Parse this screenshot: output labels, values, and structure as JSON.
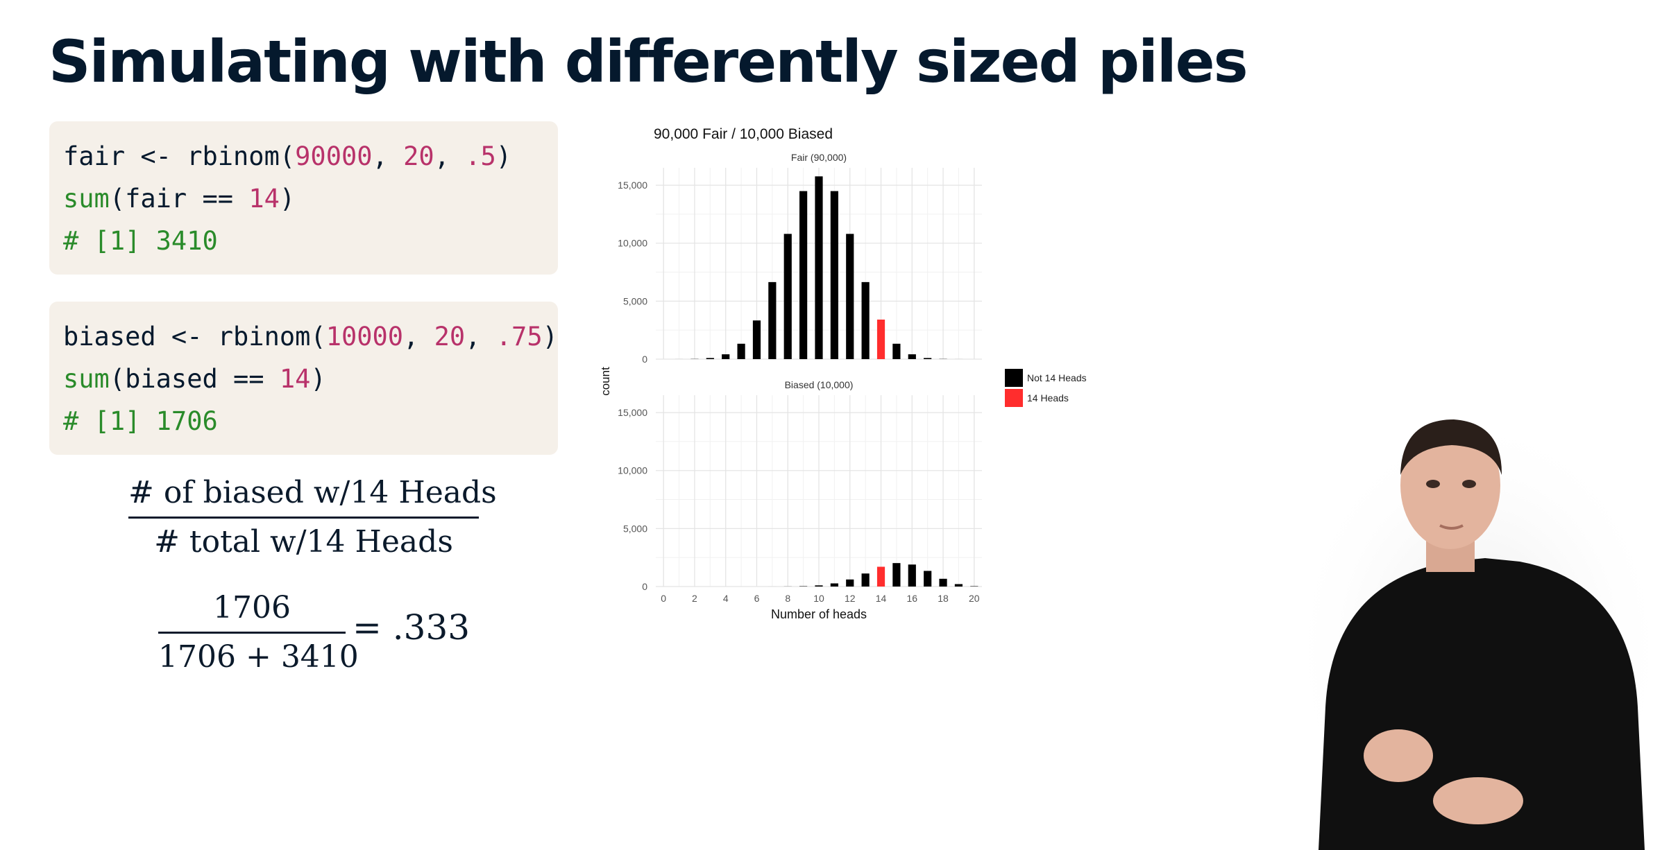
{
  "slide": {
    "title": "Simulating with differently sized piles"
  },
  "code_blocks": [
    {
      "lines": [
        [
          {
            "t": "fair <- rbinom(",
            "c": "plain"
          },
          {
            "t": "90000",
            "c": "num"
          },
          {
            "t": ", ",
            "c": "plain"
          },
          {
            "t": "20",
            "c": "num"
          },
          {
            "t": ", ",
            "c": "plain"
          },
          {
            "t": ".5",
            "c": "num"
          },
          {
            "t": ")",
            "c": "plain"
          }
        ],
        [
          {
            "t": "sum",
            "c": "fn"
          },
          {
            "t": "(fair == ",
            "c": "plain"
          },
          {
            "t": "14",
            "c": "num"
          },
          {
            "t": ")",
            "c": "plain"
          }
        ],
        [
          {
            "t": "# [1] 3410",
            "c": "cmt"
          }
        ]
      ]
    },
    {
      "lines": [
        [
          {
            "t": "biased <- rbinom(",
            "c": "plain"
          },
          {
            "t": "10000",
            "c": "num"
          },
          {
            "t": ", ",
            "c": "plain"
          },
          {
            "t": "20",
            "c": "num"
          },
          {
            "t": ", ",
            "c": "plain"
          },
          {
            "t": ".75",
            "c": "num"
          },
          {
            "t": ")",
            "c": "plain"
          }
        ],
        [
          {
            "t": "sum",
            "c": "fn"
          },
          {
            "t": "(biased == ",
            "c": "plain"
          },
          {
            "t": "14",
            "c": "num"
          },
          {
            "t": ")",
            "c": "plain"
          }
        ],
        [
          {
            "t": "# [1] 1706",
            "c": "cmt"
          }
        ]
      ]
    }
  ],
  "formula": {
    "ratio_numerator": "# of biased w/14 Heads",
    "ratio_denominator": "# total w/14 Heads",
    "calc_numerator": "1706",
    "calc_denominator": "1706 + 3410",
    "calc_result": "= .333"
  },
  "chart_data": {
    "type": "bar",
    "title": "90,000 Fair / 10,000 Biased",
    "xlabel": "Number of heads",
    "ylabel": "count",
    "x": [
      0,
      1,
      2,
      3,
      4,
      5,
      6,
      7,
      8,
      9,
      10,
      11,
      12,
      13,
      14,
      15,
      16,
      17,
      18,
      19,
      20
    ],
    "x_ticks": [
      0,
      2,
      4,
      6,
      8,
      10,
      12,
      14,
      16,
      18,
      20
    ],
    "y_ticks": [
      0,
      5000,
      10000,
      15000
    ],
    "y_tick_labels": [
      "0",
      "5,000",
      "10,000",
      "15,000"
    ],
    "ylim": [
      0,
      16500
    ],
    "highlight_x": 14,
    "panels": [
      {
        "name": "Fair (90,000)",
        "values": [
          0,
          2,
          16,
          97,
          417,
          1328,
          3335,
          6644,
          10800,
          14490,
          15760,
          14490,
          10800,
          6644,
          3410,
          1328,
          417,
          97,
          16,
          2,
          0
        ]
      },
      {
        "name": "Biased (10,000)",
        "values": [
          0,
          0,
          0,
          0,
          0,
          0,
          0,
          1,
          8,
          30,
          99,
          271,
          609,
          1124,
          1706,
          2023,
          1897,
          1349,
          669,
          211,
          32
        ]
      }
    ],
    "legend": {
      "placement": "right",
      "entries": [
        {
          "label": "Not 14 Heads",
          "color": "#000000"
        },
        {
          "label": "14 Heads",
          "color": "#ff2d2d"
        }
      ]
    }
  }
}
